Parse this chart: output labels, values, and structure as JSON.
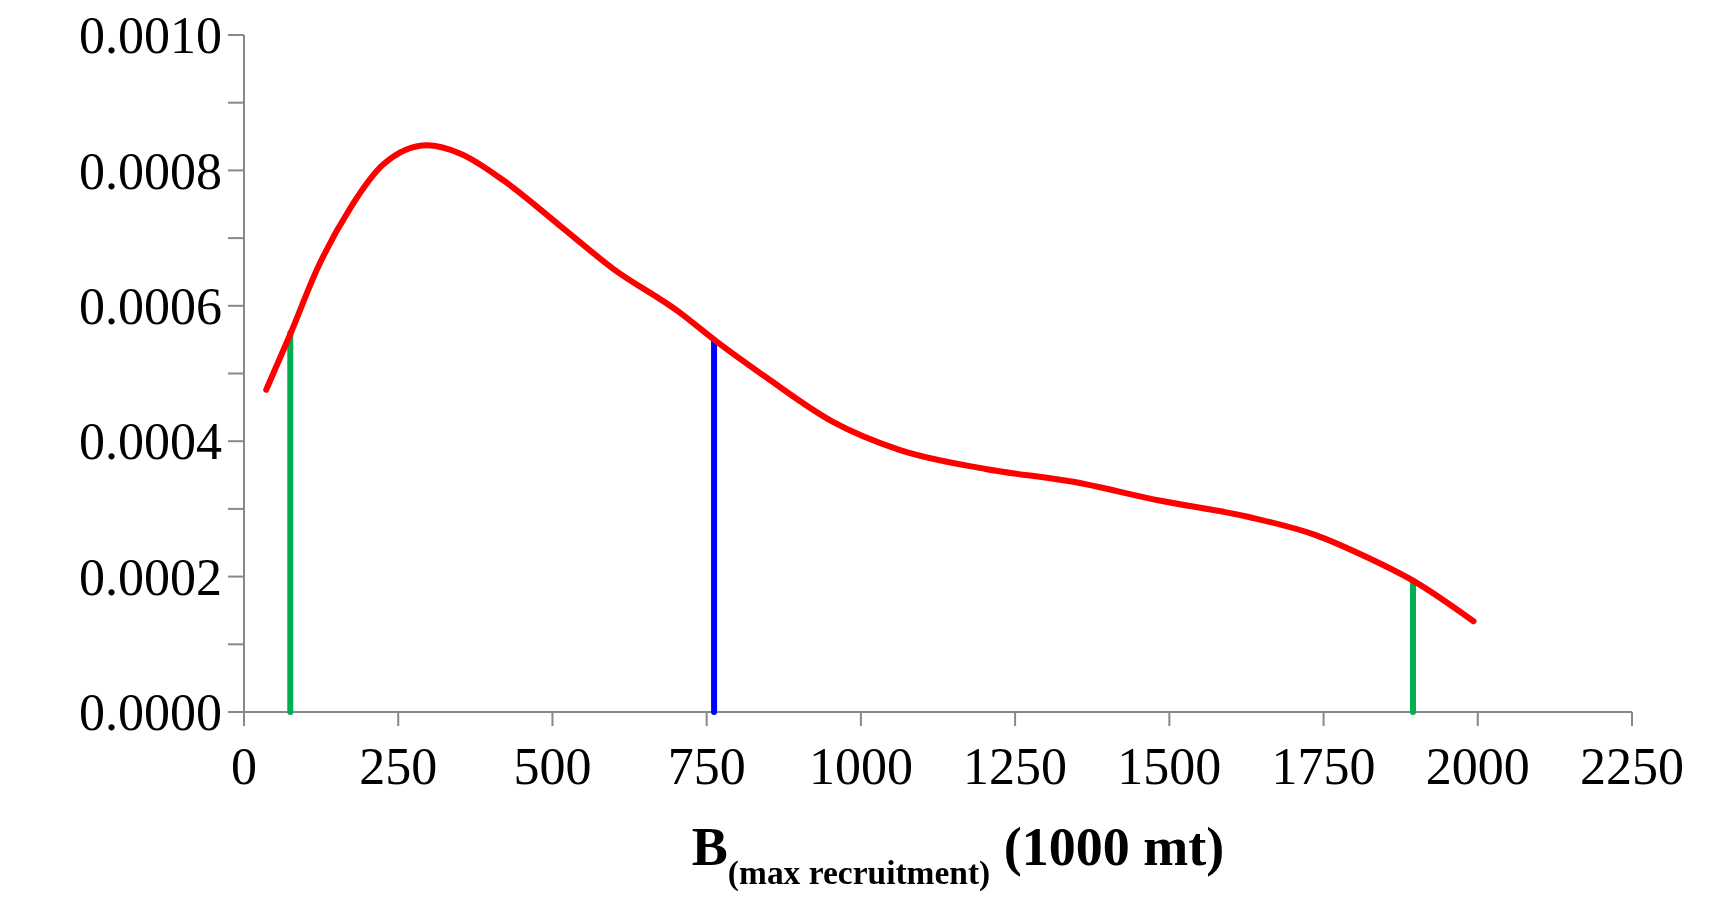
{
  "chart_data": {
    "type": "line",
    "xlabel": "B$_{(max recruitment)}$ (1000 mt)",
    "xlim": [
      0,
      2250
    ],
    "xticks": [
      0,
      250,
      500,
      750,
      1000,
      1250,
      1500,
      1750,
      2000,
      2250
    ],
    "ylim": [
      0,
      0.001
    ],
    "yticks": [
      {
        "value": 0,
        "label": "0.0000"
      },
      {
        "value": 0.0001,
        "label": null
      },
      {
        "value": 0.0002,
        "label": "0.0002"
      },
      {
        "value": 0.0003,
        "label": null
      },
      {
        "value": 0.0004,
        "label": "0.0004"
      },
      {
        "value": 0.0005,
        "label": null
      },
      {
        "value": 0.0006,
        "label": "0.0006"
      },
      {
        "value": 0.0007,
        "label": null
      },
      {
        "value": 0.0008,
        "label": "0.0008"
      },
      {
        "value": 0.0009,
        "label": null
      },
      {
        "value": 0.001,
        "label": "0.0010"
      }
    ],
    "grid": false,
    "marker": "none",
    "line_style": "solid",
    "series": [
      {
        "color": "#00b050",
        "x": [
          75,
          75
        ],
        "values": [
          0,
          0.00056
        ]
      },
      {
        "color": "#0000ff",
        "x": [
          762,
          762
        ],
        "values": [
          0,
          0.00055
        ]
      },
      {
        "color": "#00b050",
        "x": [
          1895,
          1895
        ],
        "values": [
          0,
          0.000194
        ]
      },
      {
        "color": "#ff0000",
        "x": [
          36,
          75,
          119,
          172,
          226,
          297,
          350,
          421,
          510,
          598,
          705,
          762,
          847,
          954,
          1060,
          1202,
          1344,
          1486,
          1629,
          1735,
          1824,
          1895,
          1993
        ],
        "values": [
          0.000476,
          0.000558,
          0.000655,
          0.000744,
          0.000809,
          0.000837,
          0.000825,
          0.000785,
          0.00072,
          0.000655,
          0.000591,
          0.00055,
          0.000494,
          0.000429,
          0.000388,
          0.000359,
          0.00034,
          0.000312,
          0.000288,
          0.000262,
          0.000227,
          0.000194,
          0.000134
        ]
      }
    ]
  }
}
